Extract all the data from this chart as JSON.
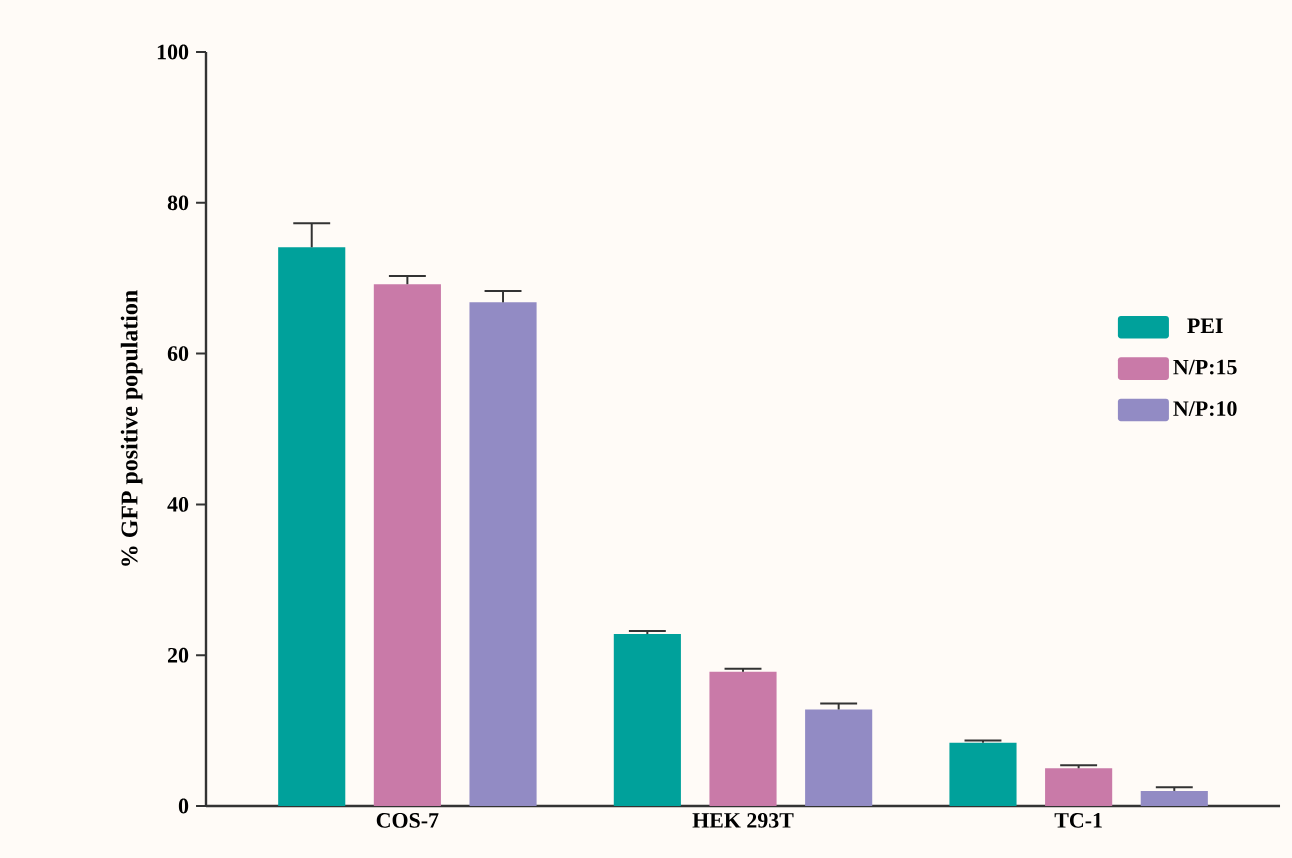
{
  "chart_data": {
    "type": "bar",
    "ylabel": "% GFP positive population",
    "categories": [
      "COS-7",
      "HEK 293T",
      "TC-1"
    ],
    "series": [
      {
        "name": "PEI",
        "color": "#00a19b",
        "values": [
          74.1,
          22.8,
          8.4
        ],
        "errors": [
          [
            74.1,
            77.3
          ],
          [
            22.8,
            23.2
          ],
          [
            8.4,
            8.7
          ]
        ]
      },
      {
        "name": "N/P:15",
        "color": "#c97aa8",
        "values": [
          69.2,
          17.8,
          5.0
        ],
        "errors": [
          [
            69.2,
            70.3
          ],
          [
            17.8,
            18.2
          ],
          [
            5.0,
            5.4
          ]
        ]
      },
      {
        "name": "N/P:10",
        "color": "#928bc4",
        "values": [
          66.8,
          12.8,
          2.0
        ],
        "errors": [
          [
            66.8,
            68.3
          ],
          [
            12.8,
            13.6
          ],
          [
            2.0,
            2.5
          ]
        ]
      }
    ],
    "ylim": [
      0,
      100
    ],
    "yticks": [
      0,
      20,
      40,
      60,
      80,
      100
    ],
    "legend": "right",
    "grid": false
  }
}
